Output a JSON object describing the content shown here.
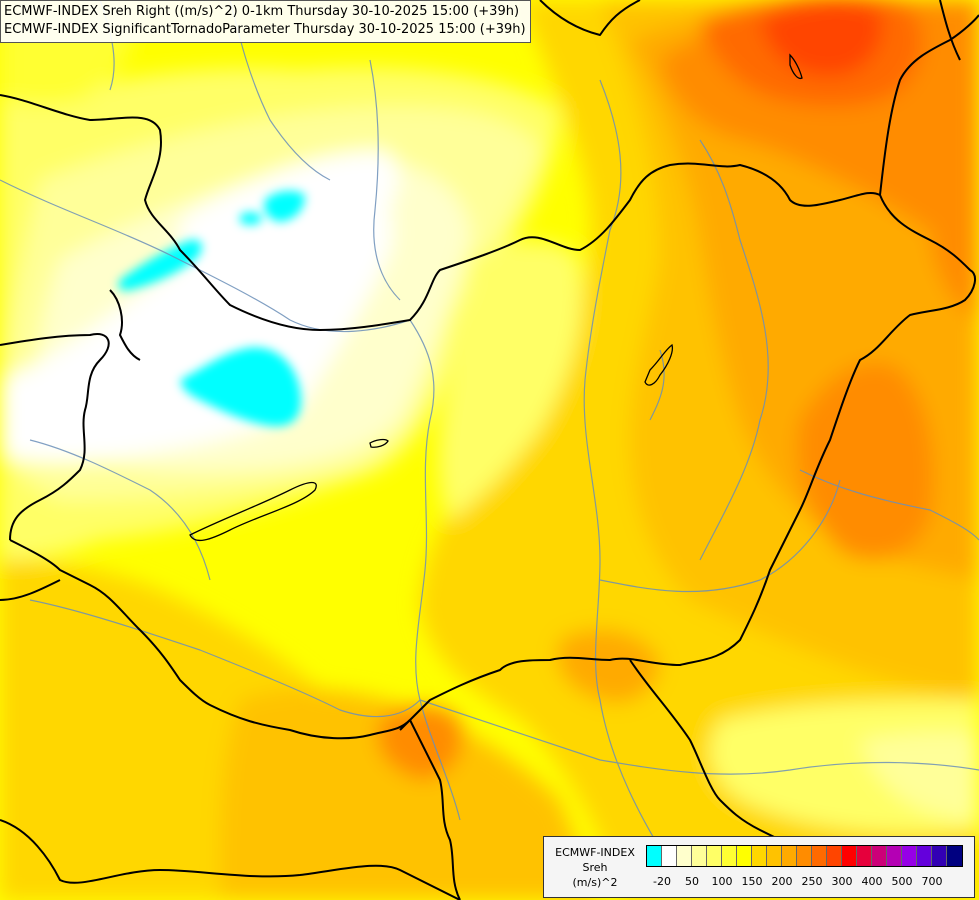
{
  "title": {
    "line1": "ECMWF-INDEX Sreh Right ((m/s)^2) 0-1km Thursday 30-10-2025 15:00 (+39h)",
    "line2": "ECMWF-INDEX SignificantTornadoParameter Thursday 30-10-2025 15:00 (+39h)"
  },
  "legend": {
    "title_line1": "ECMWF-INDEX",
    "title_line2": "Sreh",
    "title_line3": "(m/s)^2",
    "colors": [
      "#00ffff",
      "#ffffff",
      "#ffffcc",
      "#ffff99",
      "#ffff66",
      "#ffff33",
      "#ffff00",
      "#ffd700",
      "#ffc200",
      "#ffaa00",
      "#ff8c00",
      "#ff6a00",
      "#ff4500",
      "#ff0000",
      "#e6003c",
      "#cc0078",
      "#b400b4",
      "#9600e6",
      "#6400dc",
      "#3200b4",
      "#000080"
    ],
    "ticks": [
      "-20",
      "50",
      "100",
      "150",
      "200",
      "250",
      "300",
      "400",
      "500",
      "700"
    ]
  },
  "map": {
    "field_colors": {
      "cyan": "#00ffff",
      "white": "#ffffff",
      "pale": "#ffffcc",
      "light": "#ffff99",
      "yellow": "#ffff00",
      "gold": "#ffd700",
      "amber": "#ffc200",
      "orange": "#ffaa00",
      "dark_orange": "#ff8c00",
      "red_orange": "#ff6a00",
      "red": "#ff4500",
      "river": "#6b8fb8",
      "border": "#000000"
    }
  }
}
